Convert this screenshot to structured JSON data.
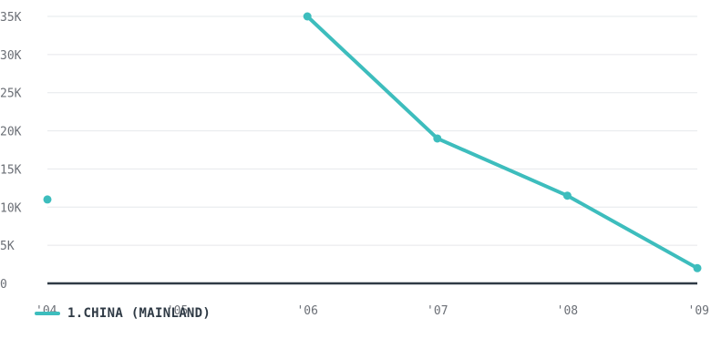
{
  "chart_data": {
    "type": "line",
    "x": [
      "'04",
      "'05",
      "'06",
      "'07",
      "'08",
      "'09"
    ],
    "ylim": [
      0,
      35000
    ],
    "y_ticks": [
      {
        "value": 0,
        "label": "0"
      },
      {
        "value": 5000,
        "label": "5K"
      },
      {
        "value": 10000,
        "label": "10K"
      },
      {
        "value": 15000,
        "label": "15K"
      },
      {
        "value": 20000,
        "label": "20K"
      },
      {
        "value": 25000,
        "label": "25K"
      },
      {
        "value": 30000,
        "label": "30K"
      },
      {
        "value": 35000,
        "label": "35K"
      }
    ],
    "grid": true,
    "legend_position": "bottom-left",
    "series": [
      {
        "name": "1.CHINA (MAINLAND)",
        "color": "#3dbdbd",
        "values": [
          11000,
          null,
          35000,
          19000,
          11500,
          2000
        ]
      }
    ]
  },
  "colors": {
    "series": "#3dbdbd",
    "grid": "#e6e8eb",
    "baseline": "#2f3a45",
    "tick_text": "#6b6f76"
  }
}
